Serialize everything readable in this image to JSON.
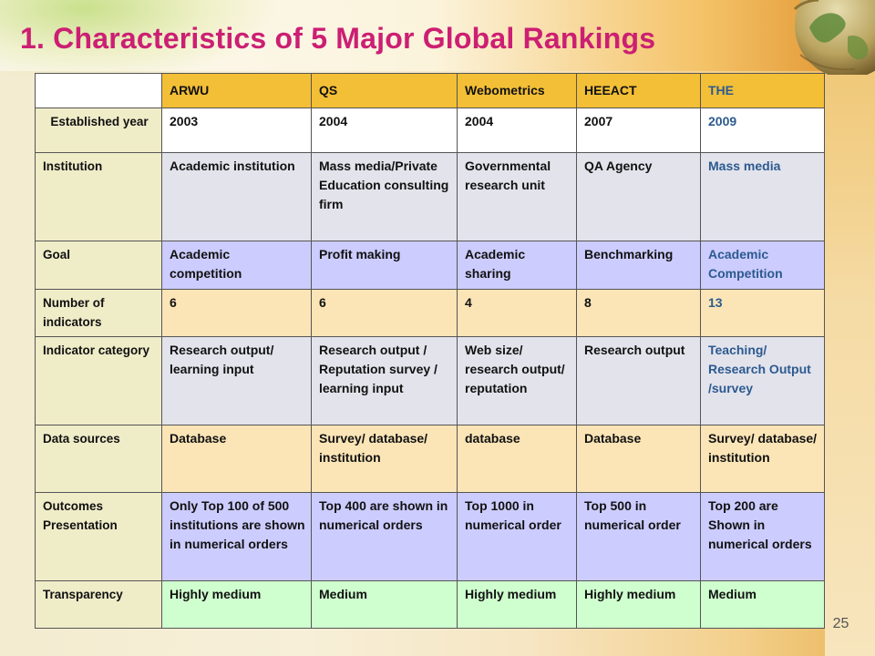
{
  "slide": {
    "title": "1.  Characteristics of 5 Major Global Rankings",
    "page_number": "25"
  },
  "table": {
    "columns": [
      "",
      "ARWU",
      "QS",
      "Webometrics",
      "HEEACT",
      "THE"
    ],
    "rows": [
      {
        "label": "Established year",
        "cells": [
          "2003",
          "2004",
          "2004",
          "2007",
          "2009"
        ]
      },
      {
        "label": "Institution",
        "cells": [
          "Academic institution",
          "Mass media/Private Education consulting firm",
          "Governmental research unit",
          "QA Agency",
          "Mass media"
        ]
      },
      {
        "label": "Goal",
        "cells": [
          "Academic competition",
          "Profit making",
          "Academic sharing",
          "Benchmarking",
          "Academic Competition"
        ]
      },
      {
        "label": "Number of indicators",
        "cells": [
          "6",
          "6",
          "4",
          "8",
          "13"
        ]
      },
      {
        "label": "Indicator category",
        "cells": [
          "Research output/ learning input",
          "Research output / Reputation survey / learning input",
          "Web size/ research output/ reputation",
          "Research output",
          "Teaching/ Research Output /survey"
        ]
      },
      {
        "label": "Data sources",
        "cells": [
          "Database",
          "Survey/ database/ institution",
          "database",
          "Database",
          "Survey/ database/ institution"
        ]
      },
      {
        "label": "Outcomes Presentation",
        "cells": [
          "Only Top 100 of 500 institutions are shown in numerical orders",
          "Top 400 are shown in numerical orders",
          "Top 1000 in numerical order",
          "Top 500 in numerical order",
          "Top 200 are Shown in numerical orders"
        ]
      },
      {
        "label": "Transparency",
        "cells": [
          "Highly medium",
          "Medium",
          "Highly medium",
          "Highly medium",
          "Medium"
        ]
      }
    ]
  },
  "colors": {
    "title": "#cc1f73",
    "header_fill": "#f3bf36",
    "label_fill": "#efecc8",
    "the_column_text": "#2c5a8f"
  },
  "decorations": {
    "top_right": "globe-image",
    "top_left": "green-leaf-image"
  }
}
